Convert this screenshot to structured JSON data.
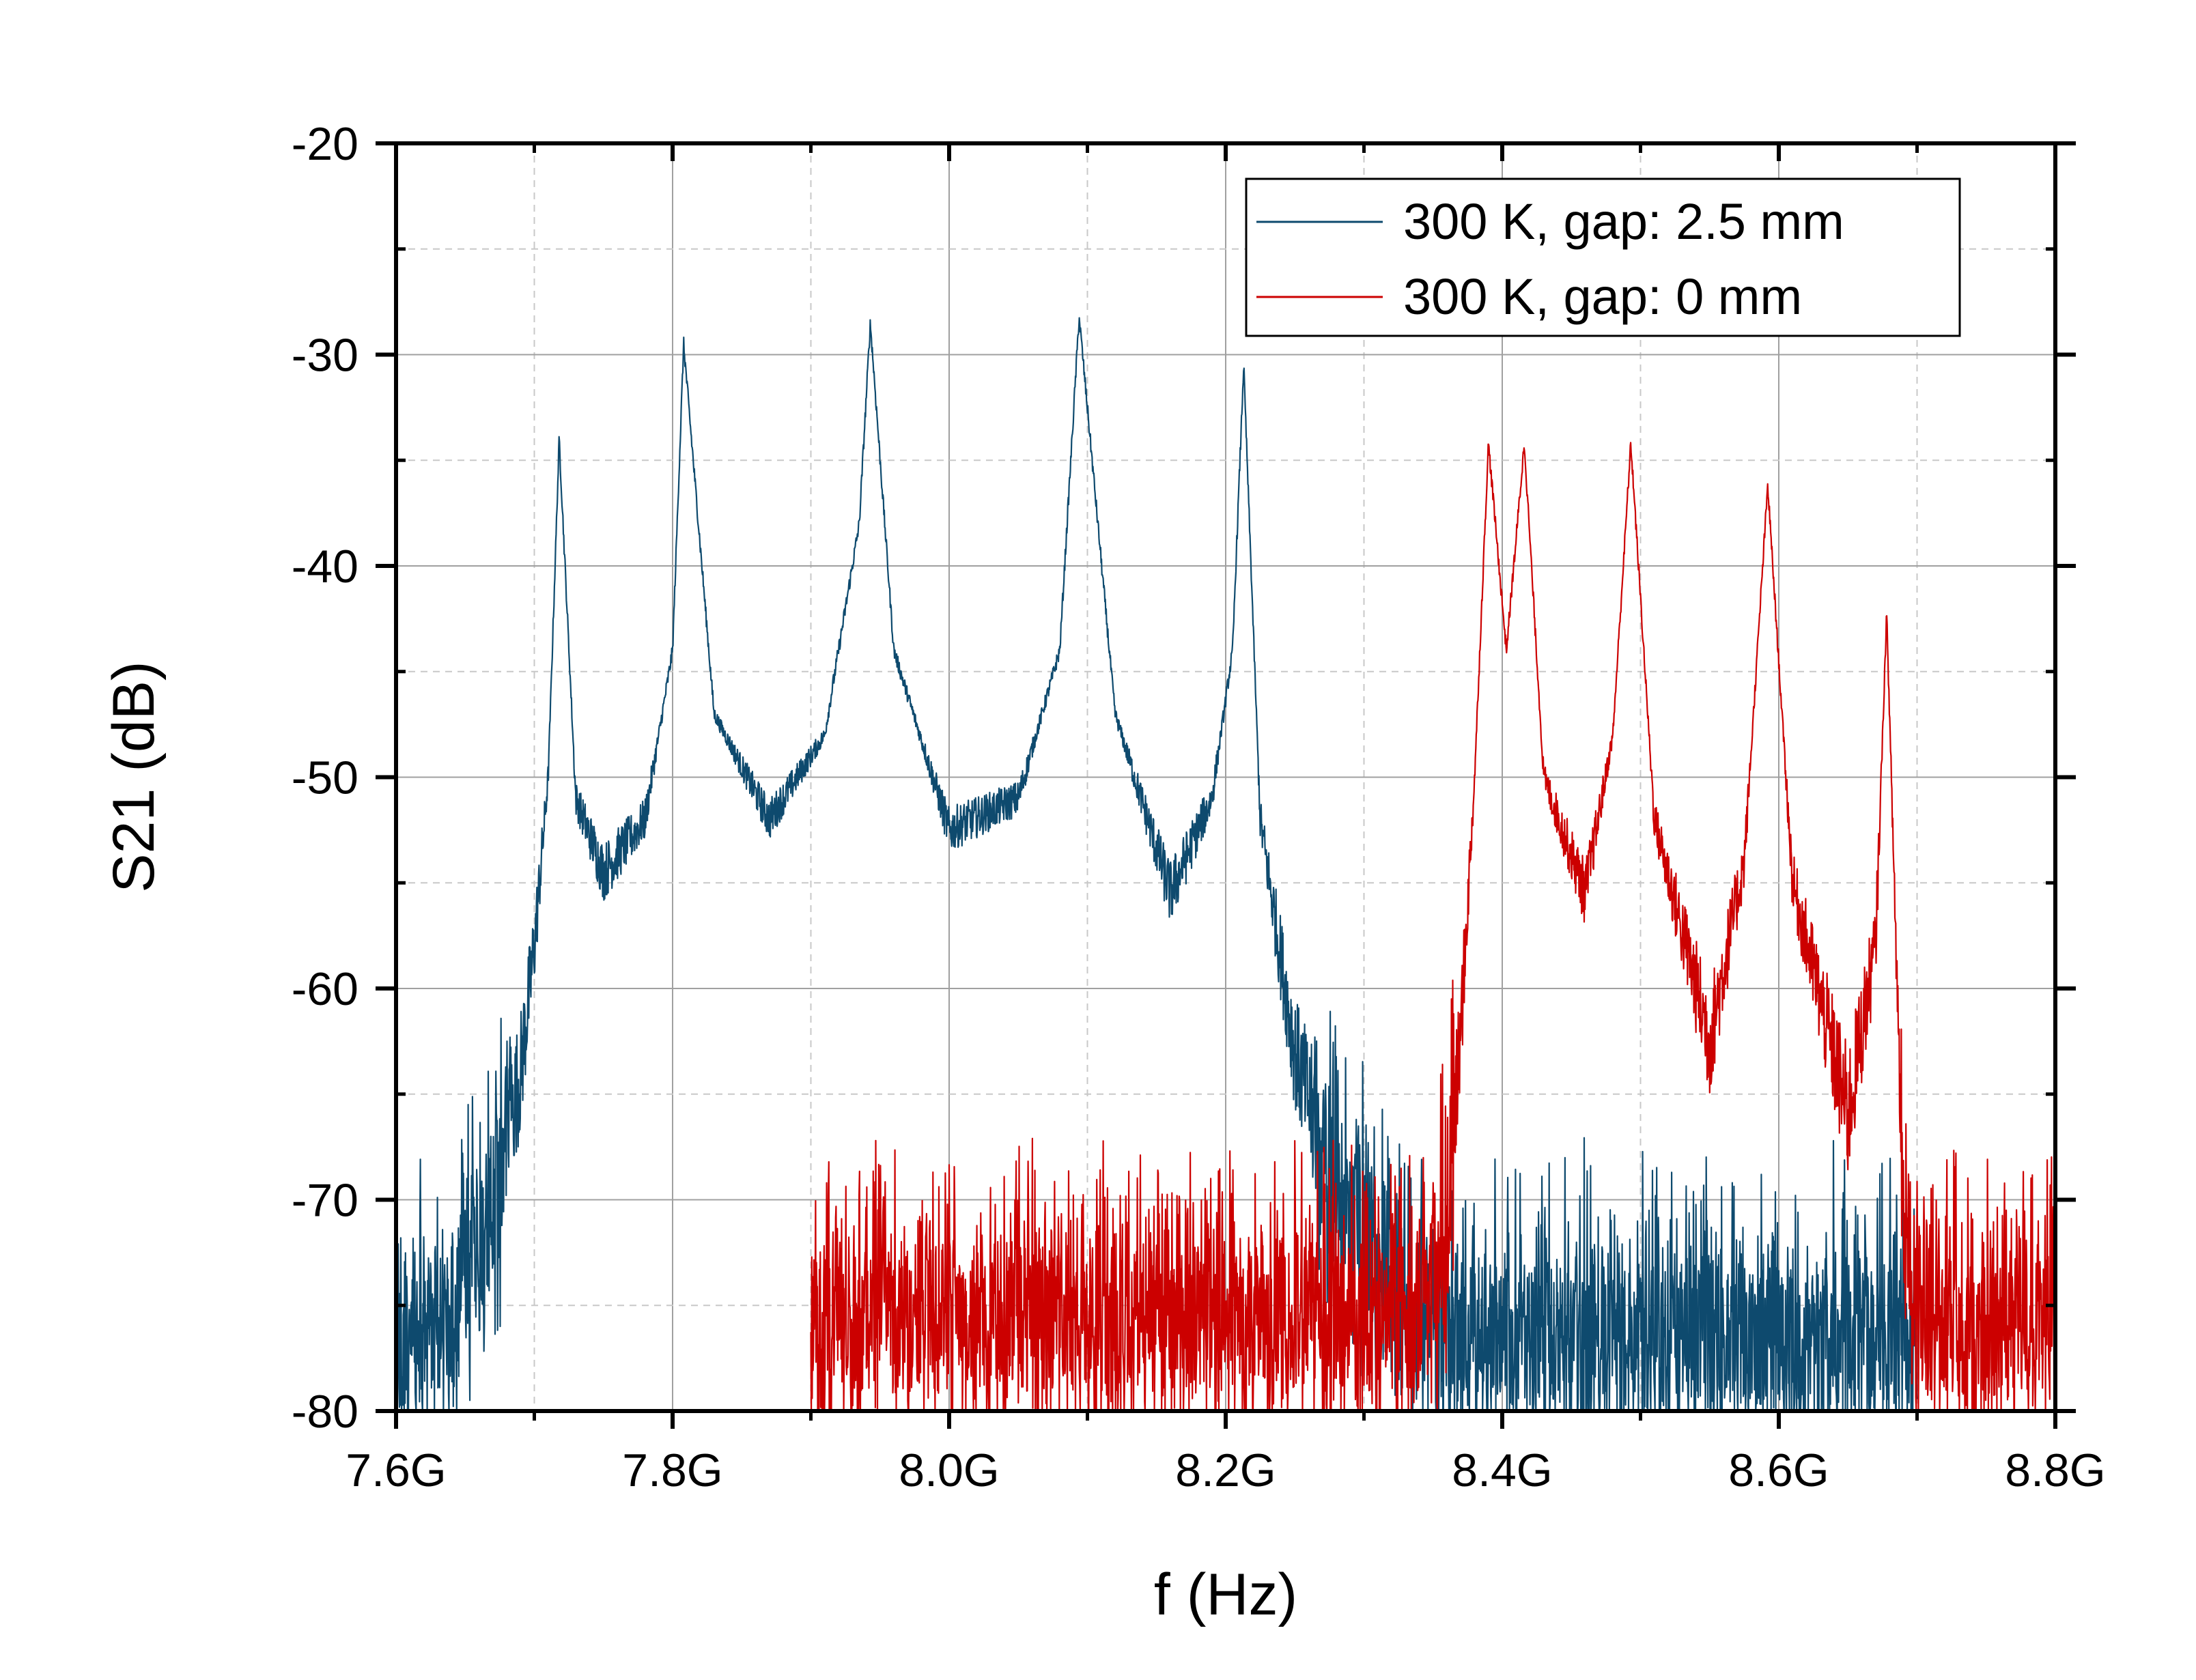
{
  "chart_data": {
    "type": "line",
    "title": "",
    "xlabel": "f (Hz)",
    "ylabel": "S21 (dB)",
    "xlim": [
      7.6,
      8.8
    ],
    "ylim": [
      -80,
      -20
    ],
    "x_unit_suffix": "G",
    "xticks": [
      7.6,
      7.8,
      8.0,
      8.2,
      8.4,
      8.6,
      8.8
    ],
    "xtick_labels": [
      "7.6G",
      "7.8G",
      "8.0G",
      "8.2G",
      "8.4G",
      "8.6G",
      "8.8G"
    ],
    "yticks": [
      -80,
      -70,
      -60,
      -50,
      -40,
      -30,
      -20
    ],
    "ytick_labels": [
      "-80",
      "-70",
      "-60",
      "-50",
      "-40",
      "-30",
      "-20"
    ],
    "grid": true,
    "legend_position": "top-right",
    "series": [
      {
        "name": "300 K, gap: 2.5 mm",
        "color": "#0e4a6e",
        "noise_floor_db": -72,
        "x": [
          7.6,
          7.64,
          7.67,
          7.69,
          7.7,
          7.71,
          7.718,
          7.73,
          7.75,
          7.78,
          7.8,
          7.808,
          7.83,
          7.87,
          7.91,
          7.935,
          7.943,
          7.96,
          8.0,
          8.05,
          8.08,
          8.094,
          8.12,
          8.16,
          8.19,
          8.205,
          8.213,
          8.225,
          8.25,
          8.28,
          8.32,
          8.36,
          8.4,
          8.5,
          8.6,
          8.7
        ],
        "y": [
          -78,
          -75,
          -70,
          -64,
          -58,
          -50,
          -34,
          -51,
          -54.5,
          -52,
          -44,
          -29.5,
          -47,
          -52,
          -48,
          -38,
          -28.5,
          -44,
          -52.5,
          -51,
          -44,
          -28.2,
          -47,
          -55.5,
          -51,
          -44,
          -30.5,
          -52,
          -63,
          -70,
          -74,
          -76,
          -76.5,
          -76.5,
          -76.5,
          -76.5
        ]
      },
      {
        "name": "300 K, gap: 0 mm",
        "color": "#cc0000",
        "noise_floor_db": -73,
        "x": [
          7.9,
          8.0,
          8.1,
          8.2,
          8.3,
          8.34,
          8.36,
          8.37,
          8.38,
          8.39,
          8.403,
          8.416,
          8.43,
          8.46,
          8.48,
          8.493,
          8.51,
          8.55,
          8.575,
          8.592,
          8.61,
          8.65,
          8.67,
          8.678,
          8.69,
          8.7,
          8.75,
          8.8
        ],
        "y": [
          -75.5,
          -75.5,
          -75.5,
          -75.5,
          -75.5,
          -75.5,
          -72,
          -62,
          -50,
          -34.2,
          -44,
          -34.2,
          -50,
          -55.5,
          -48,
          -34.2,
          -52,
          -62.5,
          -54,
          -36.2,
          -55,
          -66,
          -58,
          -42.2,
          -70,
          -76,
          -76,
          -76
        ]
      }
    ]
  }
}
